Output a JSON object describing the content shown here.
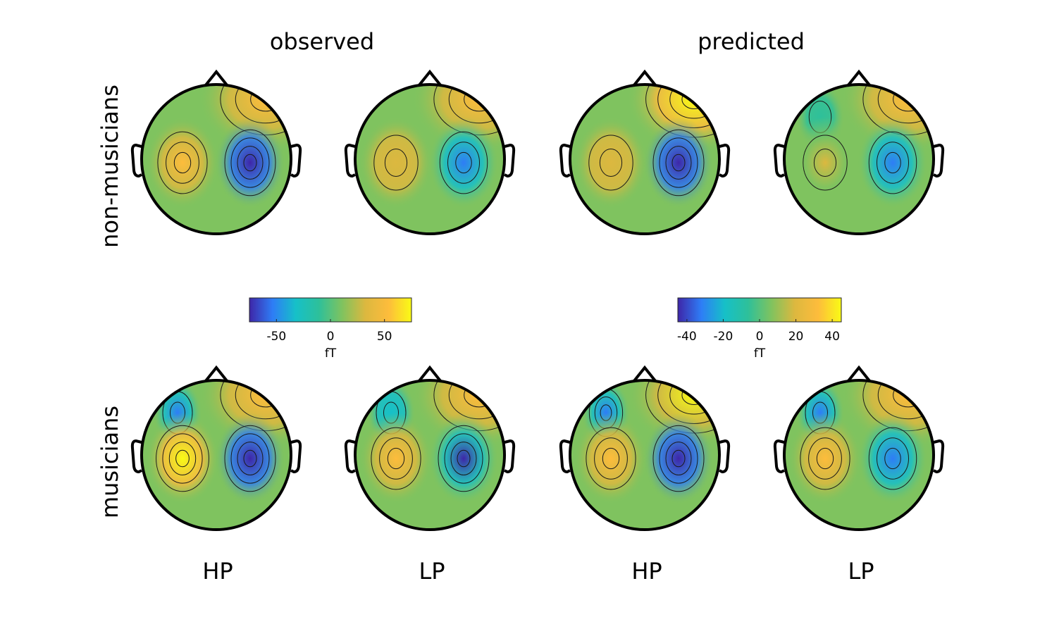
{
  "figure": {
    "column_titles": [
      "observed",
      "predicted"
    ],
    "row_labels": [
      "non-musicians",
      "musicians"
    ],
    "condition_labels": [
      "HP",
      "LP",
      "HP",
      "LP"
    ]
  },
  "colormap": [
    "#3e26a8",
    "#2e7df6",
    "#16c0c8",
    "#2ec09a",
    "#7fc35f",
    "#dcb83f",
    "#fdbc3c",
    "#f9fb15"
  ],
  "colorbars": [
    {
      "name": "observed",
      "unit": "fT",
      "range": [
        -75,
        75
      ],
      "ticks": [
        "-50",
        "0",
        "50"
      ],
      "tick_values": [
        -50,
        0,
        50
      ]
    },
    {
      "name": "predicted",
      "unit": "fT",
      "range": [
        -45,
        45
      ],
      "ticks": [
        "-40",
        "-20",
        "0",
        "20",
        "40"
      ],
      "tick_values": [
        -40,
        -20,
        0,
        20,
        40
      ]
    }
  ],
  "topomaps": [
    {
      "row": "non-musicians",
      "column": "observed",
      "condition": "HP",
      "left_peak": 0.75,
      "right_peak": -1.0,
      "frontal_right": 0.85,
      "frontal_left": 0.0
    },
    {
      "row": "non-musicians",
      "column": "observed",
      "condition": "LP",
      "left_peak": 0.5,
      "right_peak": -0.75,
      "frontal_right": 0.75,
      "frontal_left": 0.0
    },
    {
      "row": "non-musicians",
      "column": "predicted",
      "condition": "HP",
      "left_peak": 0.55,
      "right_peak": -1.0,
      "frontal_right": 1.0,
      "frontal_left": 0.0
    },
    {
      "row": "non-musicians",
      "column": "predicted",
      "condition": "LP",
      "left_peak": 0.45,
      "right_peak": -0.85,
      "frontal_right": 0.85,
      "frontal_left": -0.15
    },
    {
      "row": "musicians",
      "column": "observed",
      "condition": "HP",
      "left_peak": 1.0,
      "right_peak": -1.0,
      "frontal_right": 0.7,
      "frontal_left": -0.6
    },
    {
      "row": "musicians",
      "column": "observed",
      "condition": "LP",
      "left_peak": 0.75,
      "right_peak": -0.9,
      "frontal_right": 0.65,
      "frontal_left": -0.55
    },
    {
      "row": "musicians",
      "column": "predicted",
      "condition": "HP",
      "left_peak": 0.8,
      "right_peak": -1.0,
      "frontal_right": 0.9,
      "frontal_left": -0.65
    },
    {
      "row": "musicians",
      "column": "predicted",
      "condition": "LP",
      "left_peak": 0.7,
      "right_peak": -0.85,
      "frontal_right": 0.7,
      "frontal_left": -0.6
    }
  ]
}
